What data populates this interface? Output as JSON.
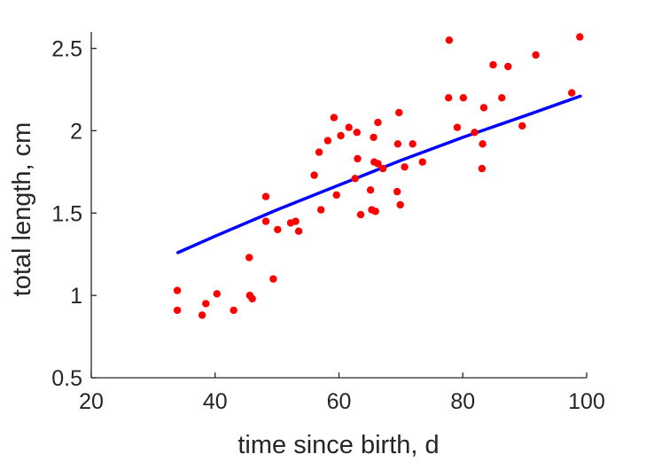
{
  "chart_data": {
    "type": "scatter",
    "title": "",
    "xlabel": "time since birth, d",
    "ylabel": "total length, cm",
    "xlim": [
      20,
      100
    ],
    "ylim": [
      0.5,
      2.6
    ],
    "xticks": [
      20,
      40,
      60,
      80,
      100
    ],
    "yticks": [
      0.5,
      1,
      1.5,
      2,
      2.5
    ],
    "xtick_labels": [
      "20",
      "40",
      "60",
      "80",
      "100"
    ],
    "ytick_labels": [
      "0.5",
      "1",
      "1.5",
      "2",
      "2.5"
    ],
    "grid": false,
    "legend": "none",
    "series": [
      {
        "kind": "scatter",
        "color": "#ff0000",
        "points": [
          [
            33.9,
            1.03
          ],
          [
            33.9,
            0.91
          ],
          [
            37.9,
            0.88
          ],
          [
            38.5,
            0.95
          ],
          [
            40.3,
            1.01
          ],
          [
            43.0,
            0.91
          ],
          [
            45.5,
            1.23
          ],
          [
            45.6,
            1.0
          ],
          [
            46.0,
            0.98
          ],
          [
            48.2,
            1.6
          ],
          [
            48.2,
            1.45
          ],
          [
            49.4,
            1.1
          ],
          [
            50.1,
            1.4
          ],
          [
            52.2,
            1.44
          ],
          [
            53.0,
            1.45
          ],
          [
            53.5,
            1.39
          ],
          [
            56.0,
            1.73
          ],
          [
            56.8,
            1.87
          ],
          [
            57.1,
            1.52
          ],
          [
            58.2,
            1.94
          ],
          [
            59.2,
            2.08
          ],
          [
            59.6,
            1.61
          ],
          [
            60.3,
            1.97
          ],
          [
            61.6,
            2.02
          ],
          [
            62.6,
            1.71
          ],
          [
            62.9,
            1.99
          ],
          [
            63.0,
            1.83
          ],
          [
            63.5,
            1.49
          ],
          [
            65.1,
            1.64
          ],
          [
            65.3,
            1.52
          ],
          [
            65.6,
            1.96
          ],
          [
            65.7,
            1.81
          ],
          [
            65.9,
            1.51
          ],
          [
            66.3,
            1.8
          ],
          [
            66.3,
            2.05
          ],
          [
            67.1,
            1.77
          ],
          [
            69.4,
            1.63
          ],
          [
            69.5,
            1.92
          ],
          [
            69.7,
            2.11
          ],
          [
            69.9,
            1.55
          ],
          [
            70.6,
            1.78
          ],
          [
            71.9,
            1.92
          ],
          [
            73.5,
            1.81
          ],
          [
            77.7,
            2.2
          ],
          [
            77.8,
            2.55
          ],
          [
            79.1,
            2.02
          ],
          [
            80.1,
            2.2
          ],
          [
            81.9,
            1.99
          ],
          [
            83.1,
            1.77
          ],
          [
            83.2,
            1.92
          ],
          [
            83.4,
            2.14
          ],
          [
            84.9,
            2.4
          ],
          [
            86.3,
            2.2
          ],
          [
            87.3,
            2.39
          ],
          [
            89.6,
            2.03
          ],
          [
            91.8,
            2.46
          ],
          [
            97.6,
            2.23
          ],
          [
            98.9,
            2.57
          ]
        ]
      },
      {
        "kind": "curve",
        "color": "#0000ff",
        "points": [
          [
            34.0,
            1.26
          ],
          [
            40,
            1.36
          ],
          [
            50,
            1.52
          ],
          [
            60,
            1.67
          ],
          [
            70,
            1.82
          ],
          [
            80,
            1.96
          ],
          [
            90,
            2.09
          ],
          [
            99.0,
            2.21
          ]
        ]
      }
    ]
  }
}
